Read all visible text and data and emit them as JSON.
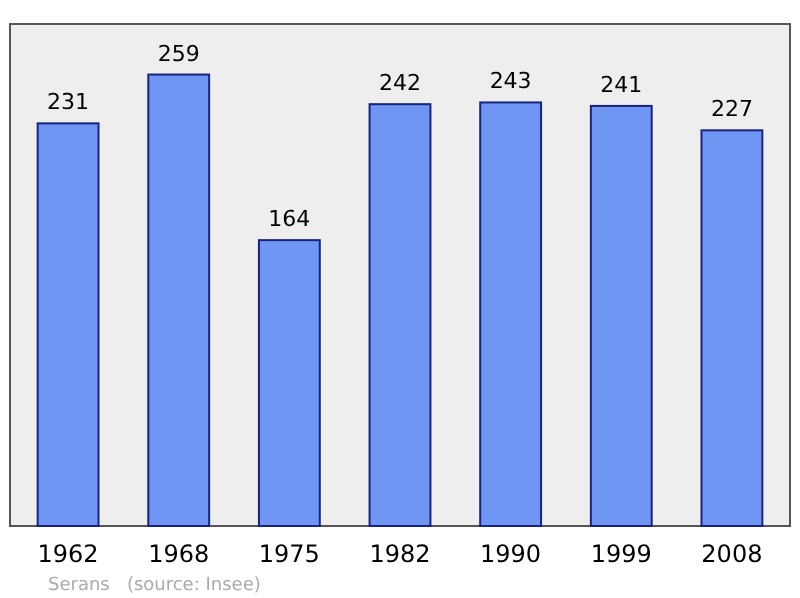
{
  "chart_data": {
    "type": "bar",
    "categories": [
      "1962",
      "1968",
      "1975",
      "1982",
      "1990",
      "1999",
      "2008"
    ],
    "values": [
      231,
      259,
      164,
      242,
      243,
      241,
      227
    ],
    "color": "#6f96f3",
    "ylim": [
      0,
      288
    ],
    "data_labels": true,
    "annotations": [
      "Serans   (source: Insee)"
    ]
  }
}
